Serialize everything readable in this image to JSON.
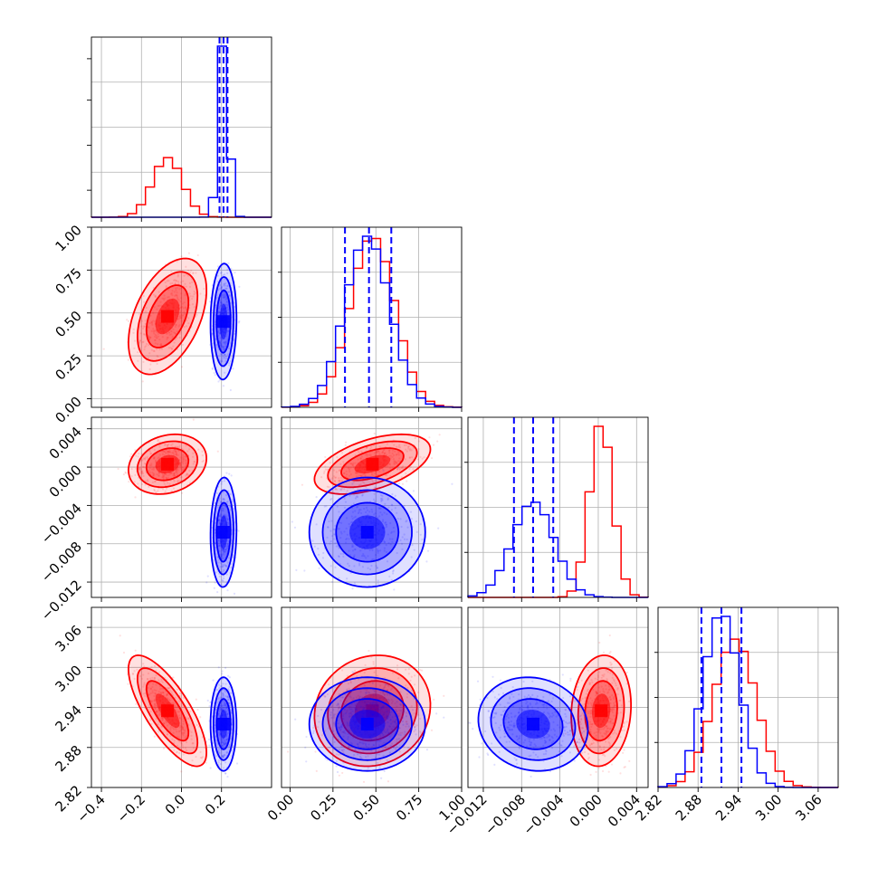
{
  "chart_data": {
    "type": "corner",
    "parameters": 4,
    "grid": true,
    "series": [
      {
        "color": "#ff0000",
        "marginals": [
          {
            "mean": -0.07,
            "std": 0.075
          },
          {
            "mean": 0.48,
            "std": 0.13
          },
          {
            "mean": 0.0003,
            "std": 0.0012
          },
          {
            "mean": 2.935,
            "std": 0.032
          }
        ]
      },
      {
        "color": "#0000ff",
        "marginals": [
          {
            "mean": 0.21,
            "std": 0.025
          },
          {
            "mean": 0.45,
            "std": 0.13
          },
          {
            "mean": -0.0068,
            "std": 0.0022
          },
          {
            "mean": 2.915,
            "std": 0.027
          }
        ]
      }
    ],
    "quantile_lines": {
      "color": "#0000ff",
      "values": [
        [
          0.19,
          0.21,
          0.23
        ],
        [
          0.32,
          0.46,
          0.59
        ],
        [
          -0.0088,
          -0.0068,
          -0.0047
        ],
        [
          2.885,
          2.915,
          2.945
        ]
      ]
    },
    "correlations": {
      "red": {
        "0-1": 0.45,
        "0-2": 0.2,
        "1-2": 0.5,
        "0-3": -0.75,
        "1-3": 0.1,
        "2-3": 0.1
      },
      "blue": {
        "0-1": 0.05,
        "0-2": 0.05,
        "1-2": 0.0,
        "0-3": 0.0,
        "1-3": 0.0,
        "2-3": -0.1
      }
    },
    "axes": [
      {
        "range": [
          -0.45,
          0.45
        ],
        "ticks": [
          -0.4,
          -0.2,
          0.0,
          0.2
        ],
        "tick_labels": [
          "−0.4",
          "−0.2",
          "0.0",
          "0.2"
        ]
      },
      {
        "range": [
          -0.05,
          1.0
        ],
        "ticks": [
          0.0,
          0.25,
          0.5,
          0.75,
          1.0
        ],
        "tick_labels": [
          "0.00",
          "0.25",
          "0.50",
          "0.75",
          "1.00"
        ]
      },
      {
        "range": [
          -0.0136,
          0.0052
        ],
        "ticks": [
          -0.012,
          -0.008,
          -0.004,
          0.0,
          0.004
        ],
        "tick_labels": [
          "−0.012",
          "−0.008",
          "−0.004",
          "0.000",
          "0.004"
        ]
      },
      {
        "range": [
          2.82,
          3.09
        ],
        "ticks": [
          2.82,
          2.88,
          2.94,
          3.0,
          3.06
        ],
        "tick_labels": [
          "2.82",
          "2.88",
          "2.94",
          "3.00",
          "3.06"
        ]
      }
    ]
  }
}
